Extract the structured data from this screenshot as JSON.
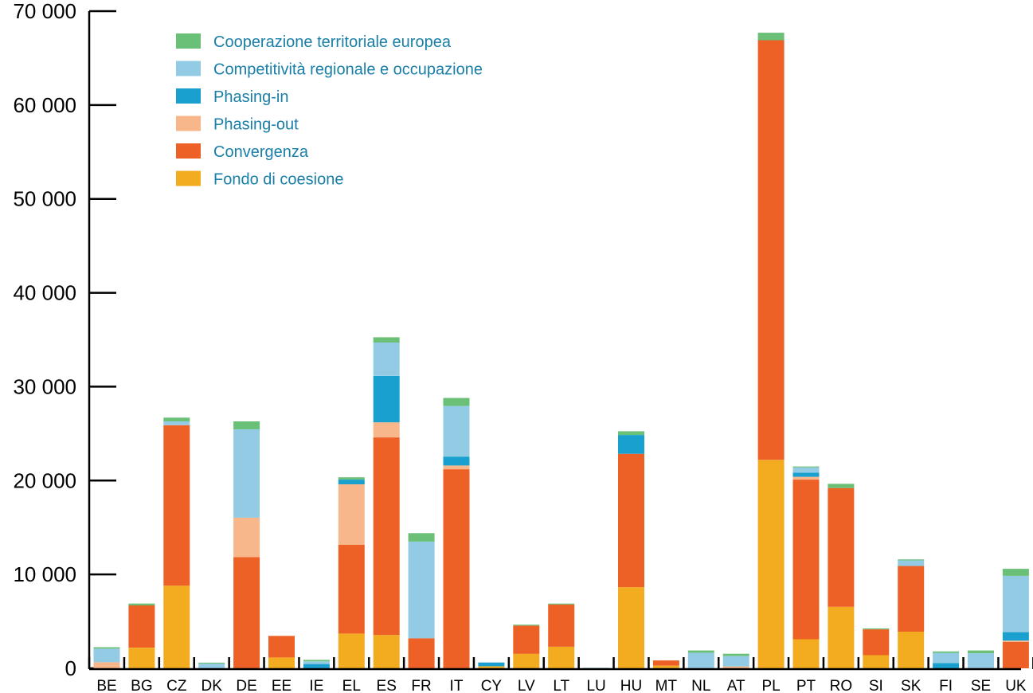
{
  "chart_data": {
    "type": "bar",
    "stacked": true,
    "title": "",
    "xlabel": "",
    "ylabel": "",
    "ylim": [
      0,
      70000
    ],
    "yticks": [
      0,
      10000,
      20000,
      30000,
      40000,
      50000,
      60000,
      70000
    ],
    "ytick_labels": [
      "0",
      "10 000",
      "20 000",
      "30 000",
      "40 000",
      "50 000",
      "60 000",
      "70 000"
    ],
    "grid": false,
    "legend_position": "top-left",
    "categories": [
      "BE",
      "BG",
      "CZ",
      "DK",
      "DE",
      "EE",
      "IE",
      "EL",
      "ES",
      "FR",
      "IT",
      "CY",
      "LV",
      "LT",
      "LU",
      "HU",
      "MT",
      "NL",
      "AT",
      "PL",
      "PT",
      "RO",
      "SI",
      "SK",
      "FI",
      "SE",
      "UK"
    ],
    "series": [
      {
        "name": "Fondo di coesione",
        "color": "#f3ac1f",
        "values": [
          0,
          2200,
          8800,
          0,
          0,
          1150,
          0,
          3700,
          3550,
          0,
          0,
          220,
          1550,
          2300,
          0,
          8650,
          290,
          0,
          0,
          22200,
          3100,
          6550,
          1400,
          3900,
          0,
          0,
          0
        ]
      },
      {
        "name": "Convergenza",
        "color": "#ed6127",
        "values": [
          0,
          4500,
          17100,
          0,
          11850,
          2300,
          0,
          9450,
          21050,
          3200,
          21200,
          0,
          3000,
          4500,
          0,
          14200,
          550,
          0,
          0,
          44700,
          17000,
          12650,
          2750,
          7000,
          0,
          0,
          2800
        ]
      },
      {
        "name": "Phasing-out",
        "color": "#f8b78a",
        "values": [
          650,
          0,
          0,
          0,
          4200,
          0,
          0,
          6450,
          1600,
          0,
          400,
          0,
          0,
          0,
          0,
          0,
          0,
          0,
          200,
          0,
          300,
          0,
          0,
          0,
          0,
          0,
          150
        ]
      },
      {
        "name": "Phasing-in",
        "color": "#1aa0cf",
        "values": [
          0,
          0,
          0,
          0,
          0,
          0,
          460,
          500,
          4950,
          0,
          950,
          400,
          0,
          0,
          0,
          2000,
          0,
          0,
          0,
          0,
          450,
          0,
          0,
          0,
          550,
          0,
          900
        ]
      },
      {
        "name": "Competitività regionale e occupazione",
        "color": "#92cbe3",
        "values": [
          1450,
          0,
          400,
          500,
          9400,
          0,
          290,
          0,
          3550,
          10300,
          5400,
          0,
          0,
          0,
          60,
          0,
          0,
          1650,
          1100,
          0,
          550,
          0,
          0,
          600,
          1100,
          1600,
          6000
        ]
      },
      {
        "name": "Cooperazione territoriale europea",
        "color": "#6ac076",
        "values": [
          150,
          200,
          400,
          100,
          850,
          0,
          150,
          250,
          560,
          900,
          850,
          0,
          100,
          100,
          0,
          400,
          0,
          250,
          250,
          800,
          100,
          450,
          100,
          100,
          150,
          300,
          750
        ]
      }
    ]
  }
}
